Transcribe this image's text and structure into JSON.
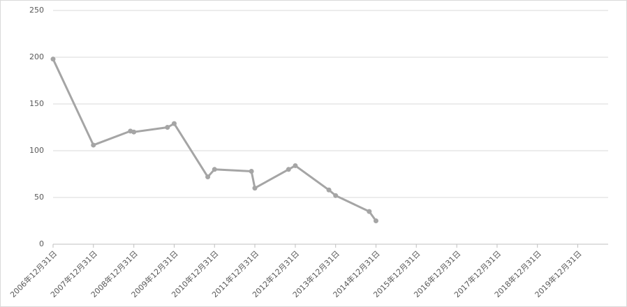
{
  "chart_data": {
    "type": "line",
    "x": [
      "2006-12-31",
      "2007-12-31",
      "2008-11-30",
      "2008-12-31",
      "2009-10-31",
      "2009-12-31",
      "2010-10-31",
      "2010-12-31",
      "2011-11-30",
      "2011-12-31",
      "2012-10-31",
      "2012-12-31",
      "2013-10-31",
      "2013-12-31",
      "2014-10-31",
      "2014-12-31"
    ],
    "series": [
      {
        "color": "#a5a5a5",
        "values": [
          198,
          106,
          121,
          120,
          125,
          129,
          72,
          80,
          78,
          60,
          80,
          84,
          58,
          52,
          35,
          25
        ]
      }
    ],
    "xlim": [
      "2006-12-31",
      "2020-10-01"
    ],
    "xticks": [
      {
        "value": "2006-12-31",
        "label": "2006年12月31日"
      },
      {
        "value": "2007-12-31",
        "label": "2007年12月31日"
      },
      {
        "value": "2008-12-31",
        "label": "2008年12月31日"
      },
      {
        "value": "2009-12-31",
        "label": "2009年12月31日"
      },
      {
        "value": "2010-12-31",
        "label": "2010年12月31日"
      },
      {
        "value": "2011-12-31",
        "label": "2011年12月31日"
      },
      {
        "value": "2012-12-31",
        "label": "2012年12月31日"
      },
      {
        "value": "2013-12-31",
        "label": "2013年12月31日"
      },
      {
        "value": "2014-12-31",
        "label": "2014年12月31日"
      },
      {
        "value": "2015-12-31",
        "label": "2015年12月31日"
      },
      {
        "value": "2016-12-31",
        "label": "2016年12月31日"
      },
      {
        "value": "2017-12-31",
        "label": "2017年12月31日"
      },
      {
        "value": "2018-12-31",
        "label": "2018年12月31日"
      },
      {
        "value": "2019-12-31",
        "label": "2019年12月31日"
      }
    ],
    "ylim": [
      0,
      250
    ],
    "yticks": [
      0,
      50,
      100,
      150,
      200,
      250
    ],
    "grid": true
  }
}
